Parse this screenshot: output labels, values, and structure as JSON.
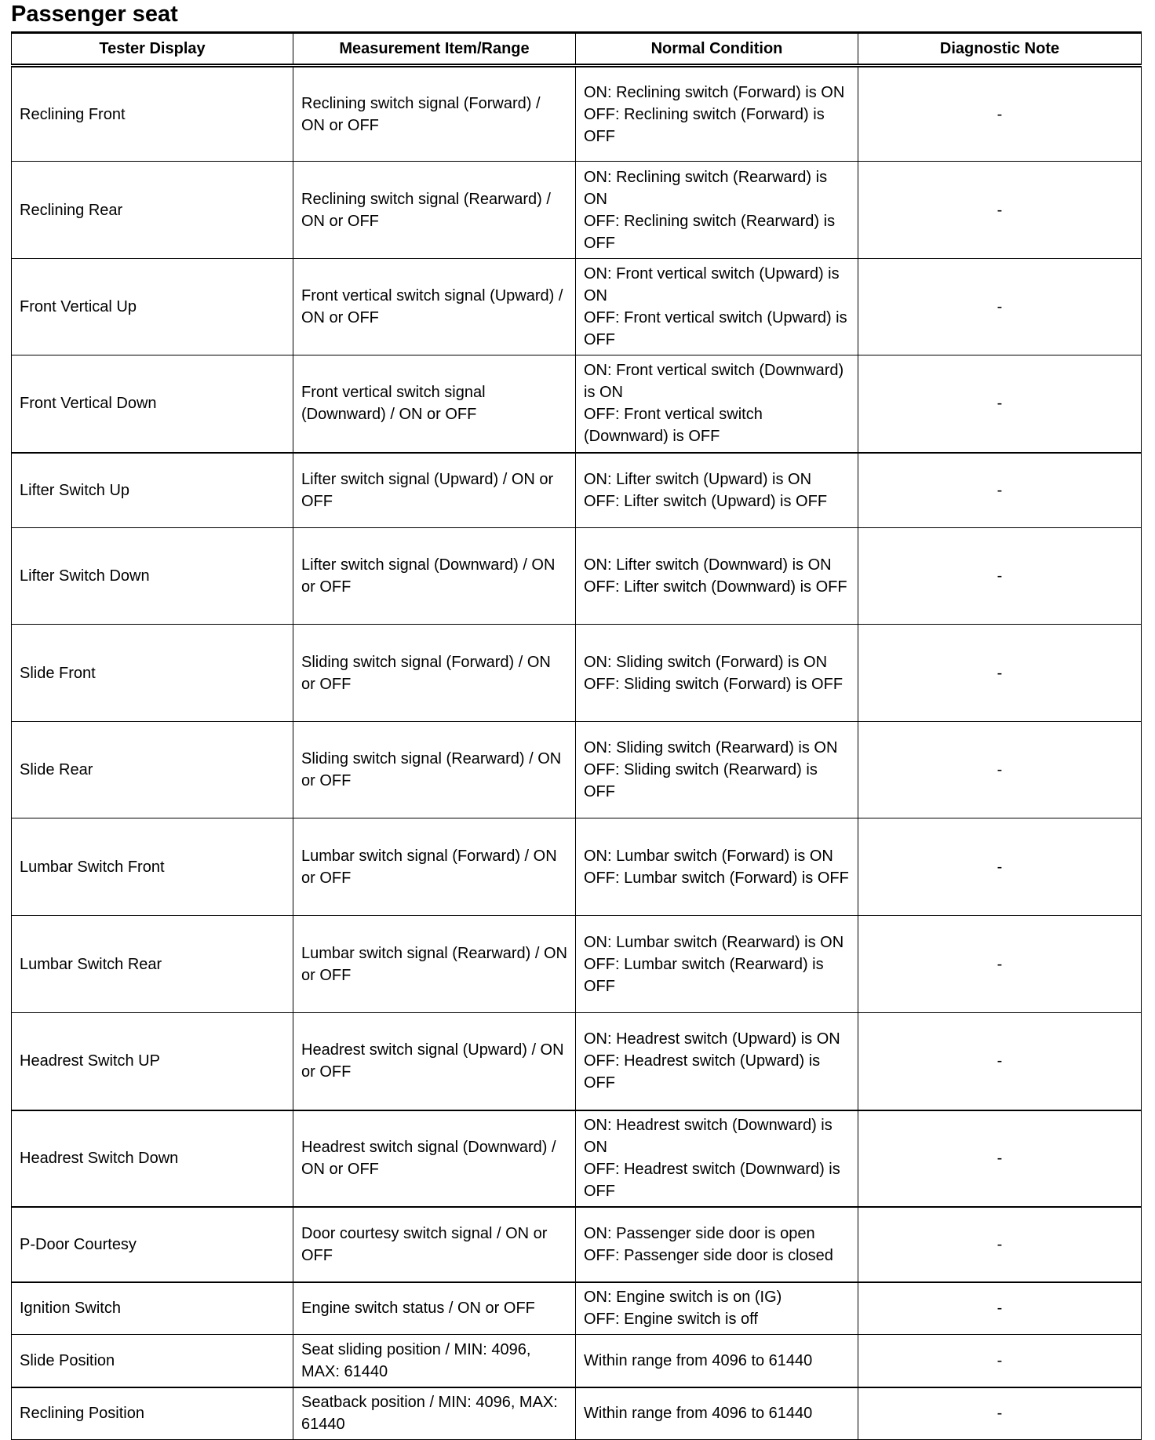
{
  "title": "Passenger seat",
  "headers": [
    "Tester Display",
    "Measurement Item/Range",
    "Normal Condition",
    "Diagnostic Note"
  ],
  "rows": [
    {
      "display": "Reclining Front",
      "item": "Reclining switch signal (Forward) / ON or OFF",
      "normal": "ON: Reclining switch (Forward) is ON\nOFF: Reclining switch (Forward) is OFF",
      "note": "-"
    },
    {
      "display": "Reclining Rear",
      "item": "Reclining switch signal (Rearward) / ON or OFF",
      "normal": "ON: Reclining switch (Rearward) is ON\nOFF: Reclining switch (Rearward) is OFF",
      "note": "-"
    },
    {
      "display": "Front Vertical Up",
      "item": "Front vertical switch signal (Upward) / ON or OFF",
      "normal": "ON: Front vertical switch (Upward) is ON\nOFF: Front vertical switch (Upward) is OFF",
      "note": "-"
    },
    {
      "display": "Front Vertical Down",
      "item": "Front vertical switch signal (Downward) / ON or OFF",
      "normal": "ON: Front vertical switch (Downward) is ON\nOFF: Front vertical switch (Downward) is OFF",
      "note": "-"
    },
    {
      "display": "Lifter Switch Up",
      "item": "Lifter switch signal (Upward) / ON or OFF",
      "normal": "ON: Lifter switch (Upward) is ON\nOFF: Lifter switch (Upward) is OFF",
      "note": "-"
    },
    {
      "display": "Lifter Switch Down",
      "item": "Lifter switch signal (Downward) / ON or OFF",
      "normal": "ON: Lifter switch (Downward) is ON\nOFF: Lifter switch (Downward) is OFF",
      "note": "-"
    },
    {
      "display": "Slide Front",
      "item": "Sliding switch signal (Forward) / ON or OFF",
      "normal": "ON: Sliding switch (Forward) is ON\nOFF: Sliding switch (Forward) is OFF",
      "note": "-"
    },
    {
      "display": "Slide Rear",
      "item": "Sliding switch signal (Rearward) / ON or OFF",
      "normal": "ON: Sliding switch (Rearward) is ON\nOFF: Sliding switch (Rearward) is OFF",
      "note": "-"
    },
    {
      "display": "Lumbar Switch Front",
      "item": "Lumbar switch signal (Forward) / ON or OFF",
      "normal": "ON: Lumbar switch (Forward) is ON\nOFF: Lumbar switch (Forward) is OFF",
      "note": "-"
    },
    {
      "display": "Lumbar Switch Rear",
      "item": "Lumbar switch signal (Rearward) / ON or OFF",
      "normal": "ON: Lumbar switch (Rearward) is ON\nOFF: Lumbar switch (Rearward) is OFF",
      "note": "-"
    },
    {
      "display": "Headrest Switch UP",
      "item": "Headrest switch signal (Upward) / ON or OFF",
      "normal": "ON: Headrest switch (Upward) is ON\nOFF: Headrest switch (Upward) is OFF",
      "note": "-"
    },
    {
      "display": "Headrest Switch Down",
      "item": "Headrest switch signal (Downward) / ON or OFF",
      "normal": "ON: Headrest switch (Downward) is ON\nOFF: Headrest switch (Downward) is OFF",
      "note": "-"
    },
    {
      "display": "P-Door Courtesy",
      "item": "Door courtesy switch signal / ON or OFF",
      "normal": "ON: Passenger side door is open\nOFF: Passenger side door is closed",
      "note": "-"
    },
    {
      "display": "Ignition Switch",
      "item": "Engine switch status / ON or OFF",
      "normal": "ON: Engine switch is on (IG)\nOFF: Engine switch is off",
      "note": "-"
    },
    {
      "display": "Slide Position",
      "item": "Seat sliding position / MIN: 4096, MAX: 61440",
      "normal": "Within range from 4096 to 61440",
      "note": "-"
    },
    {
      "display": "Reclining Position",
      "item": "Seatback position / MIN: 4096, MAX: 61440",
      "normal": "Within range from 4096 to 61440",
      "note": "-"
    }
  ]
}
